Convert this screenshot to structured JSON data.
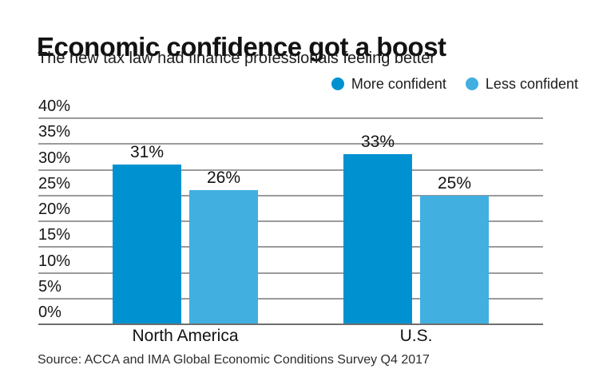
{
  "header": {
    "title": "Economic confidence got a boost",
    "subtitle": "The new tax law had finance professionals feeling better"
  },
  "legend": {
    "items": [
      {
        "label": "More confident",
        "color": "#0092d0"
      },
      {
        "label": "Less confident",
        "color": "#41afe0"
      }
    ]
  },
  "chart_data": {
    "type": "bar",
    "title": "Economic confidence got a boost",
    "subtitle": "The new tax law had finance professionals feeling better",
    "categories": [
      "North America",
      "U.S."
    ],
    "series": [
      {
        "name": "More confident",
        "color": "#0092d0",
        "values": [
          31,
          33
        ]
      },
      {
        "name": "Less confident",
        "color": "#41afe0",
        "values": [
          26,
          25
        ]
      }
    ],
    "value_labels": [
      [
        "31%",
        "33%"
      ],
      [
        "26%",
        "25%"
      ]
    ],
    "xlabel": "",
    "ylabel": "",
    "ylim": [
      0,
      40
    ],
    "ytick_step": 5,
    "ytick_labels": [
      "0%",
      "5%",
      "10%",
      "15%",
      "20%",
      "25%",
      "30%",
      "35%",
      "40%"
    ],
    "grid": true,
    "gridline_color": "#9b9b9b",
    "legend_position": "top-right"
  },
  "source": {
    "text": "Source: ACCA and IMA Global Economic Conditions Survey Q4 2017"
  }
}
